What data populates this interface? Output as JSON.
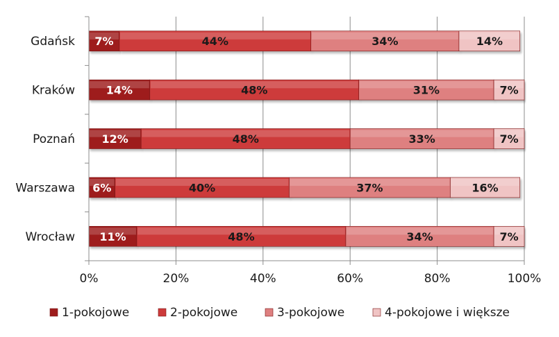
{
  "chart_data": {
    "type": "bar",
    "orientation": "horizontal",
    "stacked": "percent",
    "categories": [
      "Gdańsk",
      "Kraków",
      "Poznań",
      "Warszawa",
      "Wrocław"
    ],
    "series": [
      {
        "name": "1-pokojowe",
        "values": [
          7,
          14,
          12,
          6,
          11
        ],
        "labels": [
          "7%",
          "14%",
          "12%",
          "6%",
          "11%"
        ],
        "color": "#9e1c1c",
        "label_color": "#ffffff"
      },
      {
        "name": "2-pokojowe",
        "values": [
          44,
          48,
          48,
          40,
          48
        ],
        "labels": [
          "44%",
          "48%",
          "48%",
          "40%",
          "48%"
        ],
        "color": "#cd3b3b",
        "label_color": "#1a1a1a"
      },
      {
        "name": "3-pokojowe",
        "values": [
          34,
          31,
          33,
          37,
          34
        ],
        "labels": [
          "34%",
          "31%",
          "33%",
          "37%",
          "34%"
        ],
        "color": "#de8080",
        "label_color": "#1a1a1a"
      },
      {
        "name": "4-pokojowe i większe",
        "values": [
          14,
          7,
          7,
          16,
          7
        ],
        "labels": [
          "14%",
          "7%",
          "7%",
          "16%",
          "7%"
        ],
        "color": "#f0c4c4",
        "label_color": "#1a1a1a"
      }
    ],
    "xlim": [
      0,
      100
    ],
    "xticks": [
      0,
      20,
      40,
      60,
      80,
      100
    ],
    "xtick_labels": [
      "0%",
      "20%",
      "40%",
      "60%",
      "80%",
      "100%"
    ],
    "grid": "vertical",
    "legend_position": "bottom",
    "title": "",
    "xlabel": "",
    "ylabel": ""
  }
}
